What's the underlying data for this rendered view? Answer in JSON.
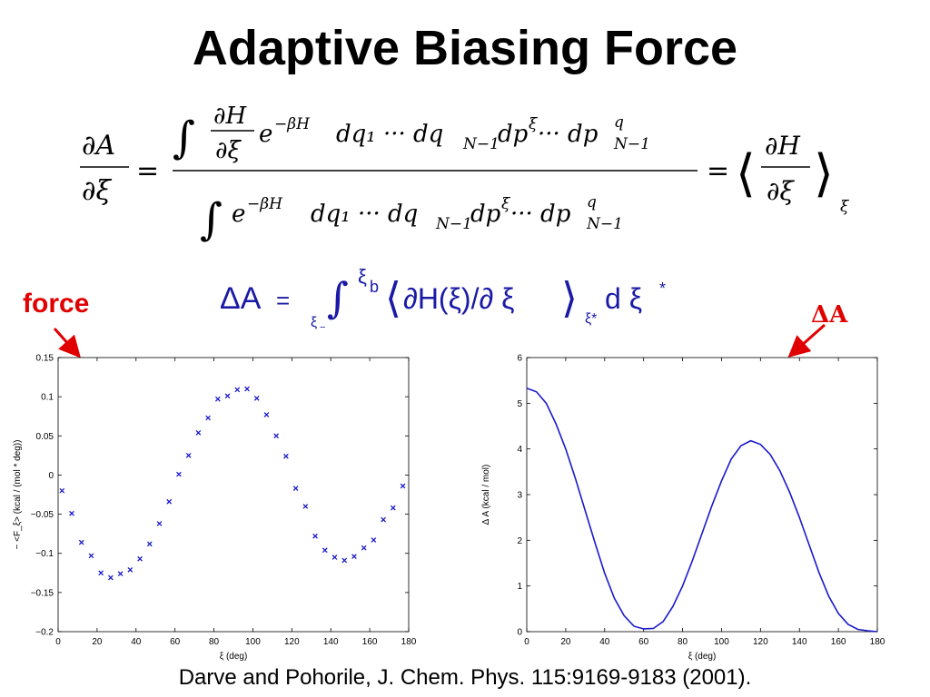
{
  "slide": {
    "title": "Adaptive Biasing Force",
    "label_force": "force",
    "label_delta_a": "ΔA",
    "citation": "Darve and Pohorile, J. Chem. Phys. 115:9169-9183 (2001)."
  },
  "equation1": {
    "lhs_num": "∂A",
    "lhs_den": "∂ξ",
    "eq": "=",
    "num_integral": "∫",
    "num_frac_num": "∂H",
    "num_frac_den": "∂ξ",
    "num_exp_base": "e",
    "num_exp": "−βH",
    "num_tail": "dq₁ ··· dq",
    "num_sub_n": "N−1",
    "num_dp": "dp",
    "num_dp_sup": "ξ",
    "num_dots": " ··· dp",
    "num_dpq_sup": "q",
    "num_dpq_sub": "N−1",
    "den_integral": "∫",
    "den_exp_base": "e",
    "den_exp": "−βH",
    "den_tail": "dq₁ ··· dq",
    "den_sub_n": "N−1",
    "den_dp": "dp",
    "den_dp_sup": "ξ",
    "den_dots": " ··· dp",
    "den_dpq_sup": "q",
    "den_dpq_sub": "N−1",
    "eq2": "=",
    "rhs_left": "⟨",
    "rhs_num": "∂H",
    "rhs_den": "∂ξ",
    "rhs_right": "⟩",
    "rhs_sub": "ξ"
  },
  "equation2": {
    "delta_a": "ΔA",
    "eq": "=",
    "integral": "∫",
    "lower": "ξ",
    "lower_sub": "−",
    "upper": "ξ",
    "upper_sub": "b",
    "langle": "⟨",
    "body": "∂H(ξ)/∂ ξ",
    "rangle": "⟩",
    "sub": "ξ*",
    "d": "d ξ",
    "star": "*"
  },
  "chart_data": [
    {
      "type": "scatter",
      "xlabel": "ξ (deg)",
      "ylabel": "− <F_ξ> (kcal / (mol * deg))",
      "xlim": [
        0,
        180
      ],
      "ylim": [
        -0.2,
        0.15
      ],
      "xticks": [
        0,
        20,
        40,
        60,
        80,
        100,
        120,
        140,
        160,
        180
      ],
      "yticks": [
        -0.2,
        -0.15,
        -0.1,
        -0.05,
        0,
        0.05,
        0.1,
        0.15
      ],
      "ytick_labels": [
        "−0.2",
        "−0.15",
        "−0.1",
        "−0.05",
        "0",
        "0.05",
        "0.1",
        "0.15"
      ],
      "marker": "x",
      "color": "#1a1acc",
      "x": [
        2,
        7,
        12,
        17,
        22,
        27,
        32,
        37,
        42,
        47,
        52,
        57,
        62,
        67,
        72,
        77,
        82,
        87,
        92,
        97,
        102,
        107,
        112,
        117,
        122,
        127,
        132,
        137,
        142,
        147,
        152,
        157,
        162,
        167,
        172,
        177
      ],
      "y": [
        -0.02,
        -0.049,
        -0.086,
        -0.103,
        -0.125,
        -0.131,
        -0.126,
        -0.121,
        -0.107,
        -0.088,
        -0.062,
        -0.034,
        0.001,
        0.025,
        0.054,
        0.073,
        0.097,
        0.101,
        0.109,
        0.11,
        0.098,
        0.077,
        0.05,
        0.024,
        -0.017,
        -0.04,
        -0.078,
        -0.096,
        -0.105,
        -0.109,
        -0.104,
        -0.093,
        -0.083,
        -0.057,
        -0.042,
        -0.014
      ]
    },
    {
      "type": "line",
      "xlabel": "ξ (deg)",
      "ylabel": "Δ A (kcal / mol)",
      "xlim": [
        0,
        180
      ],
      "ylim": [
        0,
        6
      ],
      "xticks": [
        0,
        20,
        40,
        60,
        80,
        100,
        120,
        140,
        160,
        180
      ],
      "yticks": [
        0,
        1,
        2,
        3,
        4,
        5,
        6
      ],
      "color": "#1a1acc",
      "x": [
        0,
        5,
        10,
        15,
        20,
        25,
        30,
        35,
        40,
        45,
        50,
        55,
        60,
        65,
        70,
        75,
        80,
        85,
        90,
        95,
        100,
        105,
        110,
        115,
        120,
        125,
        130,
        135,
        140,
        145,
        150,
        155,
        160,
        165,
        170,
        175,
        180
      ],
      "y": [
        5.33,
        5.25,
        5.0,
        4.55,
        4.0,
        3.35,
        2.65,
        1.95,
        1.28,
        0.73,
        0.35,
        0.12,
        0.06,
        0.07,
        0.22,
        0.55,
        1.0,
        1.55,
        2.15,
        2.75,
        3.3,
        3.78,
        4.07,
        4.18,
        4.1,
        3.88,
        3.52,
        3.05,
        2.5,
        1.9,
        1.3,
        0.78,
        0.4,
        0.16,
        0.05,
        0.02,
        0.0
      ]
    }
  ]
}
